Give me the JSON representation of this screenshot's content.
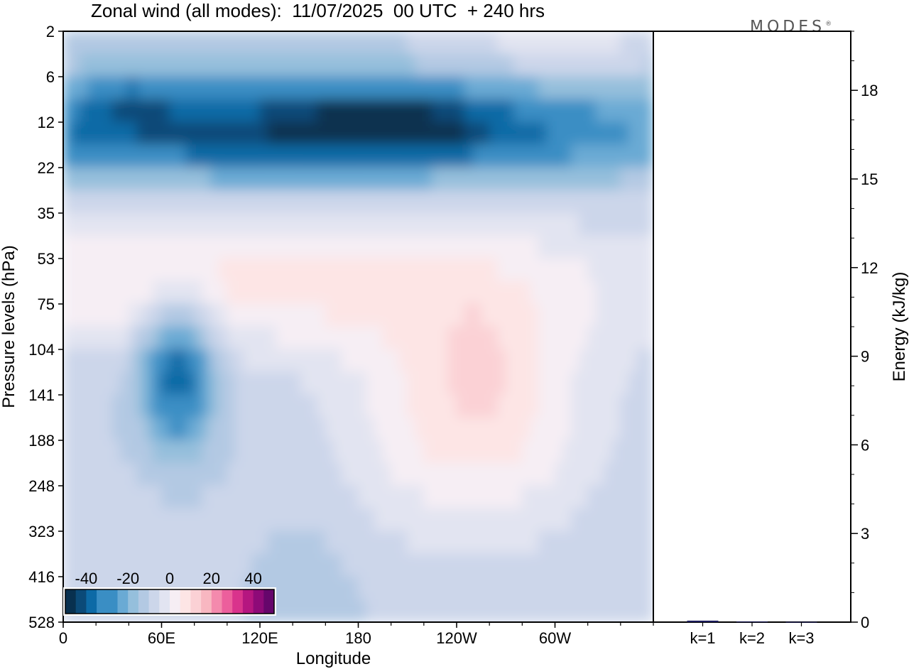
{
  "title": "Zonal wind (all modes):  11/07/2025  00 UTC  + 240 hrs",
  "logo": "MODES",
  "chart_data": [
    {
      "type": "heatmap",
      "name": "zonal-wind-cross-section",
      "xlabel": "Longitude",
      "ylabel": "Pressure levels (hPa)",
      "x_ticks": [
        "0",
        "60E",
        "120E",
        "180",
        "120W",
        "60W"
      ],
      "x_tick_values": [
        0,
        60,
        120,
        180,
        240,
        300
      ],
      "xlim": [
        0,
        360
      ],
      "y_ticks": [
        "2",
        "6",
        "12",
        "22",
        "35",
        "53",
        "75",
        "104",
        "141",
        "188",
        "248",
        "323",
        "416",
        "528"
      ],
      "y_scale": "level-index, top to bottom",
      "colorbar": {
        "tick_labels": [
          "-40",
          "-20",
          "0",
          "20",
          "40"
        ],
        "tick_values": [
          -40,
          -20,
          0,
          20,
          40
        ],
        "range": [
          -50,
          50
        ],
        "step": 5
      },
      "features": [
        {
          "desc": "stratospheric easterly jet core",
          "lon_range": [
            0,
            360
          ],
          "levels": "6-35 hPa",
          "min_value": -45
        },
        {
          "desc": "upper-troposphere easterly core",
          "lon_range": [
            55,
            130
          ],
          "levels": "75-248 hPa",
          "min_value": -35
        },
        {
          "desc": "upper-troposphere westerly region",
          "lon_range": [
            170,
            350
          ],
          "levels": "75-416 hPa",
          "max_value": 20
        }
      ]
    },
    {
      "type": "bar",
      "name": "energy-spectrum",
      "categories": [
        "k=1",
        "k=2",
        "k=3"
      ],
      "values": [
        0.05,
        0.02,
        0.01
      ],
      "ylabel": "Energy (kJ/kg)",
      "ylim": [
        0,
        20
      ],
      "y_ticks": [
        "0",
        "3",
        "6",
        "9",
        "12",
        "15",
        "18"
      ],
      "y_tick_values": [
        0,
        3,
        6,
        9,
        12,
        15,
        18
      ]
    }
  ]
}
